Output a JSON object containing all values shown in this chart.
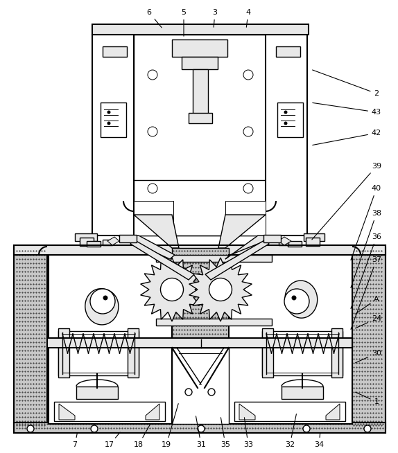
{
  "background_color": "#ffffff",
  "line_color": "#000000",
  "gray": "#c8c8c8",
  "lightgray": "#e8e8e8",
  "figsize": [
    5.74,
    6.54
  ],
  "dpi": 100,
  "labels": [
    [
      "1",
      543,
      580,
      510,
      565
    ],
    [
      "2",
      543,
      135,
      448,
      100
    ],
    [
      "3",
      310,
      18,
      308,
      42
    ],
    [
      "4",
      358,
      18,
      355,
      42
    ],
    [
      "5",
      265,
      18,
      265,
      55
    ],
    [
      "6",
      215,
      18,
      235,
      42
    ],
    [
      "7",
      108,
      642,
      112,
      622
    ],
    [
      "17",
      158,
      642,
      175,
      622
    ],
    [
      "18",
      200,
      642,
      218,
      610
    ],
    [
      "19",
      240,
      642,
      258,
      580
    ],
    [
      "24",
      543,
      460,
      510,
      475
    ],
    [
      "30",
      543,
      510,
      510,
      525
    ],
    [
      "31",
      290,
      642,
      282,
      598
    ],
    [
      "32",
      418,
      642,
      428,
      595
    ],
    [
      "33",
      358,
      642,
      352,
      600
    ],
    [
      "34",
      460,
      642,
      462,
      622
    ],
    [
      "35",
      325,
      642,
      318,
      600
    ],
    [
      "36",
      543,
      342,
      505,
      448
    ],
    [
      "37",
      543,
      375,
      505,
      478
    ],
    [
      "38",
      543,
      308,
      505,
      418
    ],
    [
      "39",
      543,
      240,
      448,
      348
    ],
    [
      "40",
      543,
      272,
      505,
      378
    ],
    [
      "42",
      543,
      192,
      448,
      210
    ],
    [
      "43",
      543,
      162,
      448,
      148
    ],
    [
      "A",
      543,
      432,
      510,
      455
    ]
  ]
}
